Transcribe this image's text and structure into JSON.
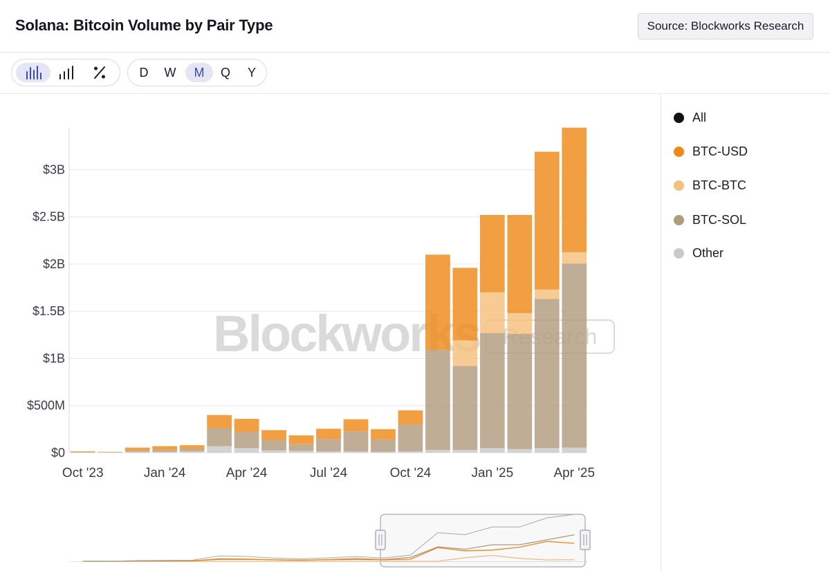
{
  "header": {
    "title": "Solana: Bitcoin Volume by Pair Type",
    "source_label": "Source: Blockworks Research"
  },
  "toolbar": {
    "chart_modes": [
      {
        "name": "bar-chart-icon",
        "active": true
      },
      {
        "name": "line-chart-icon",
        "active": false
      },
      {
        "name": "percent-icon",
        "active": false
      }
    ],
    "intervals": [
      {
        "label": "D",
        "active": false
      },
      {
        "label": "W",
        "active": false
      },
      {
        "label": "M",
        "active": true
      },
      {
        "label": "Q",
        "active": false
      },
      {
        "label": "Y",
        "active": false
      }
    ]
  },
  "watermark": {
    "brand": "Blockworks",
    "sub": "Research"
  },
  "legend": [
    {
      "label": "All",
      "color": "#111111"
    },
    {
      "label": "BTC-USD",
      "color": "#ef8a1a"
    },
    {
      "label": "BTC-BTC",
      "color": "#f7c07e"
    },
    {
      "label": "BTC-SOL",
      "color": "#b19b7f"
    },
    {
      "label": "Other",
      "color": "#c9c9c9"
    }
  ],
  "chart_data": {
    "type": "bar",
    "stacked": true,
    "title": "Solana: Bitcoin Volume by Pair Type",
    "xlabel": "",
    "ylabel": "",
    "ylim": [
      0,
      3450000000
    ],
    "y_ticks": [
      0,
      500000000,
      1000000000,
      1500000000,
      2000000000,
      2500000000,
      3000000000
    ],
    "y_tick_labels": [
      "$0",
      "$500M",
      "$1B",
      "$1.5B",
      "$2B",
      "$2.5B",
      "$3B"
    ],
    "x_tick_labels": [
      {
        "label": "Oct '23",
        "index": 0
      },
      {
        "label": "Jan '24",
        "index": 3
      },
      {
        "label": "Apr '24",
        "index": 6
      },
      {
        "label": "Jul '24",
        "index": 9
      },
      {
        "label": "Oct '24",
        "index": 12
      },
      {
        "label": "Jan '25",
        "index": 15
      },
      {
        "label": "Apr '25",
        "index": 18
      }
    ],
    "categories": [
      "Oct '23",
      "Nov '23",
      "Dec '23",
      "Jan '24",
      "Feb '24",
      "Mar '24",
      "Apr '24",
      "May '24",
      "Jun '24",
      "Jul '24",
      "Aug '24",
      "Sep '24",
      "Oct '24",
      "Nov '24",
      "Dec '24",
      "Jan '25",
      "Feb '25",
      "Mar '25",
      "Apr '25"
    ],
    "series": [
      {
        "name": "Other",
        "color": "#c9c9c9",
        "values": [
          5000000,
          5000000,
          10000000,
          10000000,
          15000000,
          70000000,
          50000000,
          25000000,
          20000000,
          15000000,
          15000000,
          10000000,
          15000000,
          30000000,
          30000000,
          50000000,
          40000000,
          50000000,
          55000000
        ]
      },
      {
        "name": "BTC-SOL",
        "color": "#b19b7f",
        "values": [
          0,
          0,
          15000000,
          20000000,
          25000000,
          190000000,
          170000000,
          110000000,
          70000000,
          130000000,
          210000000,
          130000000,
          285000000,
          1060000000,
          890000000,
          1220000000,
          1220000000,
          1580000000,
          1950000000
        ]
      },
      {
        "name": "BTC-BTC",
        "color": "#f7c07e",
        "values": [
          0,
          0,
          0,
          0,
          0,
          0,
          0,
          0,
          0,
          0,
          0,
          0,
          0,
          0,
          270000000,
          430000000,
          220000000,
          100000000,
          120000000
        ]
      },
      {
        "name": "BTC-USD",
        "color": "#ef8a1a",
        "values": [
          10000000,
          5000000,
          30000000,
          40000000,
          40000000,
          140000000,
          140000000,
          105000000,
          95000000,
          110000000,
          130000000,
          110000000,
          150000000,
          1010000000,
          770000000,
          820000000,
          1040000000,
          1460000000,
          1320000000
        ]
      }
    ],
    "navigator": {
      "type": "line",
      "series": [
        "BTC-USD",
        "BTC-BTC",
        "BTC-SOL",
        "All"
      ]
    }
  }
}
